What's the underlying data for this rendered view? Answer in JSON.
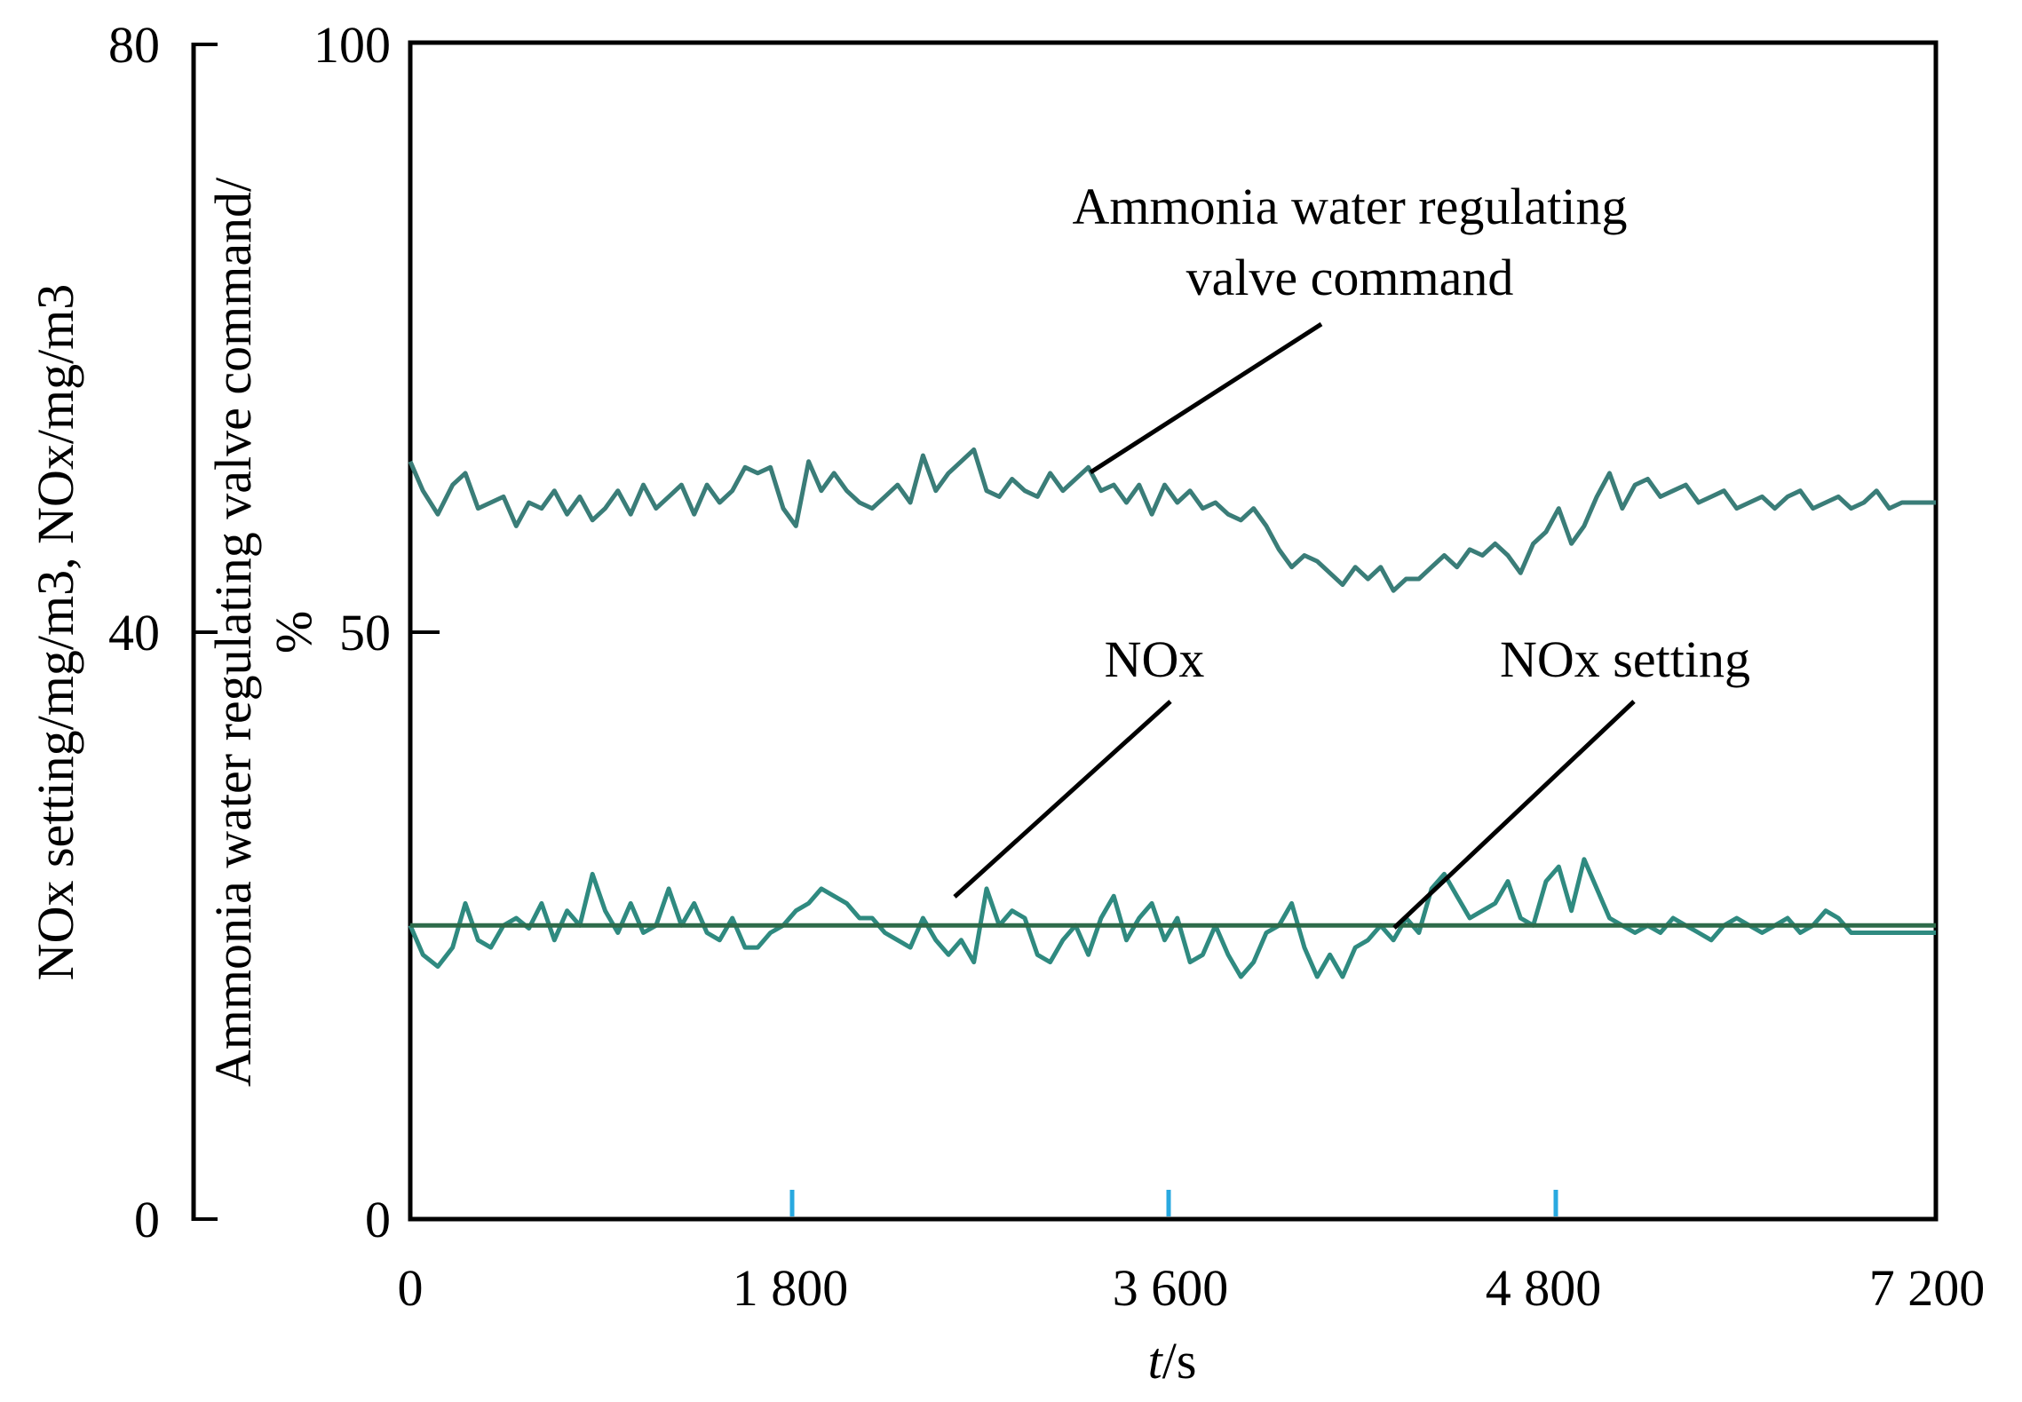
{
  "chart_data": {
    "type": "line",
    "xlabel_italic": "t",
    "xlabel_unit": "/s",
    "x_ticks": [
      "0",
      "1 800",
      "3 600",
      "4 800",
      "7 200"
    ],
    "xlim": [
      0,
      7200
    ],
    "y_left_label": "NOx setting/mg/m3,  NOx/mg/m3",
    "y_left_ticks": [
      "80",
      "40",
      "0"
    ],
    "y_left_lim": [
      0,
      80
    ],
    "y_right_label_line1": "Ammonia water regulating valve command/",
    "y_right_label_line2": "%",
    "y_right_ticks": [
      "100",
      "50",
      "0"
    ],
    "y_right_lim": [
      0,
      100
    ],
    "grid": false,
    "colors": {
      "valve": "#3a7d78",
      "nox": "#2f8a80",
      "setting": "#2e6b4a",
      "minor_tick": "#29a9e0"
    },
    "annotations": {
      "valve_line1": "Ammonia water regulating",
      "valve_line2": "valve command",
      "nox": "NOx",
      "setting": "NOx setting"
    },
    "series": [
      {
        "name": "Ammonia water regulating valve command",
        "axis": "right",
        "x": [
          0,
          60,
          130,
          200,
          260,
          320,
          380,
          440,
          500,
          560,
          620,
          680,
          740,
          800,
          860,
          920,
          980,
          1040,
          1100,
          1160,
          1220,
          1280,
          1340,
          1400,
          1460,
          1520,
          1580,
          1640,
          1700,
          1760,
          1820,
          1880,
          1940,
          2000,
          2060,
          2120,
          2180,
          2240,
          2300,
          2360,
          2420,
          2480,
          2540,
          2600,
          2660,
          2720,
          2780,
          2840,
          2900,
          2960,
          3020,
          3080,
          3140,
          3200,
          3260,
          3320,
          3380,
          3440,
          3500,
          3560,
          3620,
          3680,
          3740,
          3800,
          3860,
          3920,
          3980,
          4040,
          4100,
          4160,
          4220,
          4280,
          4340,
          4400,
          4460,
          4520,
          4580,
          4640,
          4700,
          4760,
          4820,
          4880,
          4940,
          5000,
          5060,
          5120,
          5180,
          5240,
          5300,
          5360,
          5420,
          5480,
          5540,
          5600,
          5660,
          5720,
          5780,
          5840,
          5900,
          5960,
          6020,
          6080,
          6140,
          6200,
          6260,
          6320,
          6380,
          6440,
          6500,
          6560,
          6620,
          6680,
          6740,
          6800,
          6860,
          6920,
          6980,
          7040,
          7100,
          7160,
          7200
        ],
        "values": [
          64.5,
          62.0,
          60.0,
          62.5,
          63.5,
          60.5,
          61.0,
          61.5,
          59.0,
          61.0,
          60.5,
          62.0,
          60.0,
          61.5,
          59.5,
          60.5,
          62.0,
          60.0,
          62.5,
          60.5,
          61.5,
          62.5,
          60.0,
          62.5,
          61.0,
          62.0,
          64.0,
          63.5,
          64.0,
          60.5,
          59.0,
          64.5,
          62.0,
          63.5,
          62.0,
          61.0,
          60.5,
          61.5,
          62.5,
          61.0,
          65.0,
          62.0,
          63.5,
          64.5,
          65.5,
          62.0,
          61.5,
          63.0,
          62.0,
          61.5,
          63.5,
          62.0,
          63.0,
          64.0,
          62.0,
          62.5,
          61.0,
          62.5,
          60.0,
          62.5,
          61.0,
          62.0,
          60.5,
          61.0,
          60.0,
          59.5,
          60.5,
          59.0,
          57.0,
          55.5,
          56.5,
          56.0,
          55.0,
          54.0,
          55.5,
          54.5,
          55.5,
          53.5,
          54.5,
          54.5,
          55.5,
          56.5,
          55.5,
          57.0,
          56.5,
          57.5,
          56.5,
          55.0,
          57.5,
          58.5,
          60.5,
          57.5,
          59.0,
          61.5,
          63.5,
          60.5,
          62.5,
          63.0,
          61.5,
          62.0,
          62.5,
          61.0,
          61.5,
          62.0,
          60.5,
          61.0,
          61.5,
          60.5,
          61.5,
          62.0,
          60.5,
          61.0,
          61.5,
          60.5,
          61.0,
          62.0,
          60.5,
          61.0,
          61.0,
          61.0,
          61.0
        ]
      },
      {
        "name": "NOx",
        "axis": "left",
        "x": [
          0,
          60,
          130,
          200,
          260,
          320,
          380,
          440,
          500,
          560,
          620,
          680,
          740,
          800,
          860,
          920,
          980,
          1040,
          1100,
          1160,
          1220,
          1280,
          1340,
          1400,
          1460,
          1520,
          1580,
          1640,
          1700,
          1760,
          1820,
          1880,
          1940,
          2000,
          2060,
          2120,
          2180,
          2240,
          2300,
          2360,
          2420,
          2480,
          2540,
          2600,
          2660,
          2720,
          2780,
          2840,
          2900,
          2960,
          3020,
          3080,
          3140,
          3200,
          3260,
          3320,
          3380,
          3440,
          3500,
          3560,
          3620,
          3680,
          3740,
          3800,
          3860,
          3920,
          3980,
          4040,
          4100,
          4160,
          4220,
          4280,
          4340,
          4400,
          4460,
          4520,
          4580,
          4640,
          4700,
          4760,
          4820,
          4880,
          4940,
          5000,
          5060,
          5120,
          5180,
          5240,
          5300,
          5360,
          5420,
          5480,
          5540,
          5600,
          5660,
          5720,
          5780,
          5840,
          5900,
          5960,
          6020,
          6080,
          6140,
          6200,
          6260,
          6320,
          6380,
          6440,
          6500,
          6560,
          6620,
          6680,
          6740,
          6800,
          6860,
          6920,
          6980,
          7040,
          7100,
          7160,
          7200
        ],
        "values": [
          20.0,
          18.0,
          17.2,
          18.5,
          21.5,
          19.0,
          18.5,
          20.0,
          20.5,
          19.8,
          21.5,
          19.0,
          21.0,
          20.0,
          23.5,
          21.0,
          19.5,
          21.5,
          19.5,
          20.0,
          22.5,
          20.0,
          21.5,
          19.5,
          19.0,
          20.5,
          18.5,
          18.5,
          19.5,
          20.0,
          21.0,
          21.5,
          22.5,
          22.0,
          21.5,
          20.5,
          20.5,
          19.5,
          19.0,
          18.5,
          20.5,
          19.0,
          18.0,
          19.0,
          17.5,
          22.5,
          20.0,
          21.0,
          20.5,
          18.0,
          17.5,
          19.0,
          20.0,
          18.0,
          20.5,
          22.0,
          19.0,
          20.5,
          21.5,
          19.0,
          20.5,
          17.5,
          18.0,
          20.0,
          18.0,
          16.5,
          17.5,
          19.5,
          20.0,
          21.5,
          18.5,
          16.5,
          18.0,
          16.5,
          18.5,
          19.0,
          20.0,
          19.0,
          20.5,
          19.5,
          22.5,
          23.5,
          22.0,
          20.5,
          21.0,
          21.5,
          23.0,
          20.5,
          20.0,
          23.0,
          24.0,
          21.0,
          24.5,
          22.5,
          20.5,
          20.0,
          19.5,
          20.0,
          19.5,
          20.5,
          20.0,
          19.5,
          19.0,
          20.0,
          20.5,
          20.0,
          19.5,
          20.0,
          20.5,
          19.5,
          20.0,
          21.0,
          20.5,
          19.5,
          19.5,
          19.5,
          19.5,
          19.5,
          19.5,
          19.5,
          19.5
        ]
      },
      {
        "name": "NOx setting",
        "axis": "left",
        "x": [
          0,
          7200
        ],
        "values": [
          20.0,
          20.0
        ]
      }
    ]
  }
}
